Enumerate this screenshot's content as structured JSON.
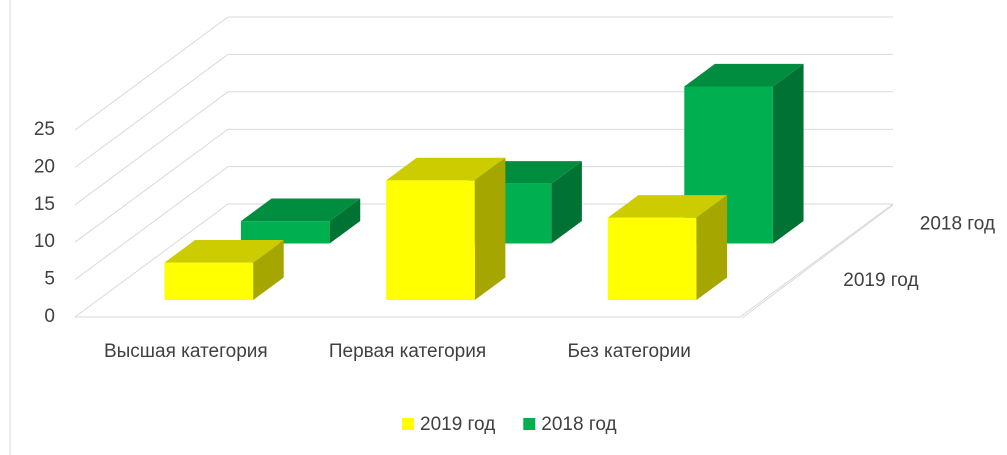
{
  "chart_data": {
    "type": "bar3d",
    "categories": [
      "Высшая категория",
      "Первая категория",
      "Без категории"
    ],
    "series": [
      {
        "name": "2019 год",
        "color": "#ffff00",
        "values": [
          5,
          16,
          11
        ]
      },
      {
        "name": "2018 год",
        "color": "#00b050",
        "values": [
          3,
          8,
          21
        ]
      }
    ],
    "ylim": [
      0,
      25
    ],
    "yticks": [
      0,
      5,
      10,
      15,
      20,
      25
    ],
    "grid": true,
    "legend": "bottom"
  }
}
